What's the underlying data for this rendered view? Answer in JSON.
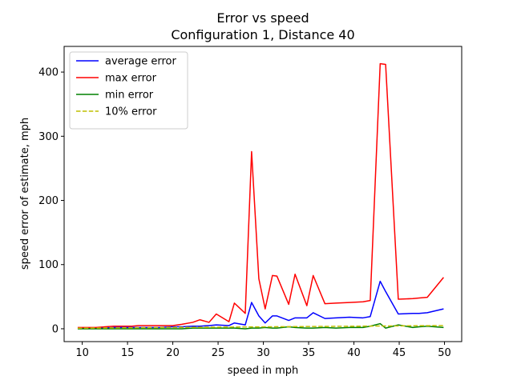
{
  "chart_data": {
    "type": "line",
    "title": "Error vs speed",
    "subtitle": "Configuration 1, Distance 40",
    "xlabel": "speed in mph",
    "ylabel": "speed error of estimate, mph",
    "xlim": [
      8.0,
      51.9
    ],
    "ylim": [
      -20,
      440
    ],
    "xticks": [
      10,
      15,
      20,
      25,
      30,
      35,
      40,
      45,
      50
    ],
    "yticks": [
      0,
      100,
      200,
      300,
      400
    ],
    "grid": false,
    "legend": "top-left",
    "x": [
      9.5,
      11.5,
      12.5,
      13.5,
      14.5,
      15.5,
      16.2,
      17.5,
      18.5,
      20.0,
      21.0,
      22.2,
      23.0,
      24.0,
      24.8,
      26.2,
      26.8,
      28.0,
      28.7,
      29.5,
      30.2,
      31.0,
      31.5,
      32.8,
      33.5,
      34.8,
      35.5,
      36.8,
      38.0,
      39.5,
      41.0,
      41.8,
      42.9,
      43.5,
      44.9,
      46.5,
      47.2,
      48.1,
      49.9
    ],
    "series": [
      {
        "name": "average error",
        "color": "#0000ff",
        "dash": "solid",
        "values": [
          1,
          1,
          1,
          2,
          2,
          2,
          2,
          2,
          2,
          3,
          3,
          4,
          4,
          5,
          6,
          5,
          9,
          6,
          41,
          20,
          9,
          20,
          20,
          13,
          17,
          17,
          25,
          16,
          17,
          18,
          17,
          19,
          74,
          58,
          23,
          24,
          24,
          25,
          31
        ]
      },
      {
        "name": "max error",
        "color": "#ff0000",
        "dash": "solid",
        "values": [
          2,
          2,
          3,
          4,
          4,
          4,
          5,
          5,
          5,
          5,
          7,
          10,
          14,
          10,
          23,
          11,
          40,
          24,
          276,
          78,
          31,
          83,
          82,
          38,
          85,
          36,
          83,
          39,
          40,
          41,
          42,
          44,
          413,
          412,
          46,
          47,
          48,
          49,
          80
        ]
      },
      {
        "name": "min error",
        "color": "#008000",
        "dash": "solid",
        "values": [
          0,
          0,
          0,
          0,
          0,
          0,
          0,
          0,
          0,
          0,
          0,
          1,
          1,
          1,
          1,
          1,
          1,
          0,
          1,
          1,
          2,
          1,
          1,
          3,
          2,
          1,
          1,
          2,
          1,
          2,
          2,
          4,
          8,
          1,
          6,
          2,
          3,
          4,
          2
        ]
      },
      {
        "name": "10% error",
        "color": "#bfbf00",
        "dash": "dashed",
        "values": [
          0.95,
          1.15,
          1.25,
          1.35,
          1.45,
          1.55,
          1.62,
          1.75,
          1.85,
          2.0,
          2.1,
          2.22,
          2.3,
          2.4,
          2.48,
          2.62,
          2.68,
          2.8,
          2.87,
          2.95,
          3.02,
          3.1,
          3.15,
          3.28,
          3.35,
          3.48,
          3.55,
          3.68,
          3.8,
          3.95,
          4.1,
          4.18,
          4.29,
          4.35,
          4.49,
          4.65,
          4.72,
          4.81,
          4.99
        ]
      }
    ]
  }
}
